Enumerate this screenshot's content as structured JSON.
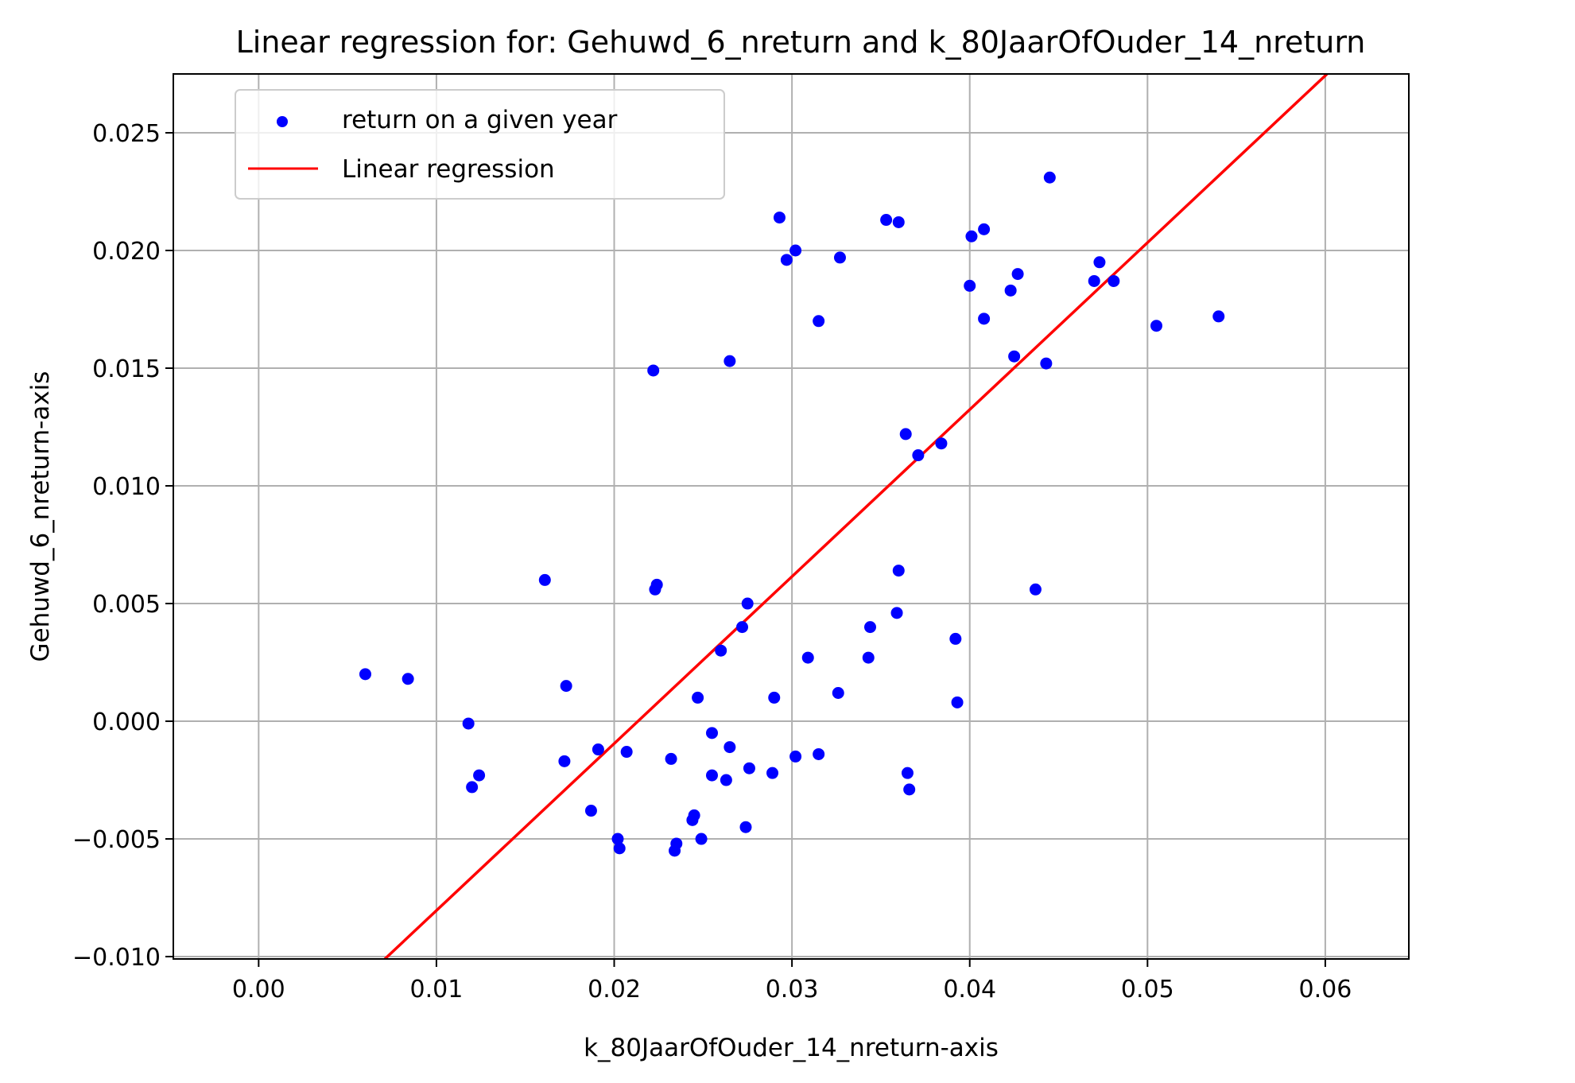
{
  "chart_data": {
    "type": "scatter",
    "title": "Linear regression for: Gehuwd_6_nreturn and k_80JaarOfOuder_14_nreturn",
    "xlabel": "k_80JaarOfOuder_14_nreturn-axis",
    "ylabel": "Gehuwd_6_nreturn-axis",
    "xlim": [
      -0.0048,
      0.0647
    ],
    "ylim": [
      -0.0101,
      0.0275
    ],
    "xticks": [
      0.0,
      0.01,
      0.02,
      0.03,
      0.04,
      0.05,
      0.06
    ],
    "xtick_labels": [
      "0.00",
      "0.01",
      "0.02",
      "0.03",
      "0.04",
      "0.05",
      "0.06"
    ],
    "yticks": [
      -0.01,
      -0.005,
      0.0,
      0.005,
      0.01,
      0.015,
      0.02,
      0.025
    ],
    "ytick_labels": [
      "−0.010",
      "−0.005",
      "0.000",
      "0.005",
      "0.010",
      "0.015",
      "0.020",
      "0.025"
    ],
    "grid": true,
    "legend_position": "top-left",
    "series": [
      {
        "name": "return on a given year",
        "kind": "scatter",
        "color": "#0000ff",
        "points": [
          [
            0.006,
            0.002
          ],
          [
            0.0084,
            0.0018
          ],
          [
            0.0118,
            -0.0001
          ],
          [
            0.012,
            -0.0028
          ],
          [
            0.0124,
            -0.0023
          ],
          [
            0.0161,
            0.006
          ],
          [
            0.0172,
            -0.0017
          ],
          [
            0.0173,
            0.0015
          ],
          [
            0.0187,
            -0.0038
          ],
          [
            0.0191,
            -0.0012
          ],
          [
            0.0202,
            -0.005
          ],
          [
            0.0203,
            -0.0054
          ],
          [
            0.0207,
            -0.0013
          ],
          [
            0.0222,
            0.0149
          ],
          [
            0.0223,
            0.0056
          ],
          [
            0.0224,
            0.0058
          ],
          [
            0.0232,
            -0.0016
          ],
          [
            0.0234,
            -0.0055
          ],
          [
            0.0235,
            -0.0052
          ],
          [
            0.0244,
            -0.0042
          ],
          [
            0.0245,
            -0.004
          ],
          [
            0.0247,
            0.001
          ],
          [
            0.0249,
            -0.005
          ],
          [
            0.0255,
            -0.0005
          ],
          [
            0.0255,
            -0.0023
          ],
          [
            0.026,
            0.003
          ],
          [
            0.0263,
            -0.0025
          ],
          [
            0.0265,
            0.0153
          ],
          [
            0.0265,
            -0.0011
          ],
          [
            0.0272,
            0.004
          ],
          [
            0.0274,
            -0.0045
          ],
          [
            0.0275,
            0.005
          ],
          [
            0.0276,
            -0.002
          ],
          [
            0.0289,
            -0.0022
          ],
          [
            0.029,
            0.001
          ],
          [
            0.0293,
            0.0214
          ],
          [
            0.0297,
            0.0196
          ],
          [
            0.0302,
            0.02
          ],
          [
            0.0302,
            -0.0015
          ],
          [
            0.0309,
            0.0027
          ],
          [
            0.0315,
            0.017
          ],
          [
            0.0315,
            -0.0014
          ],
          [
            0.0326,
            0.0012
          ],
          [
            0.0327,
            0.0197
          ],
          [
            0.0343,
            0.0027
          ],
          [
            0.0344,
            0.004
          ],
          [
            0.0353,
            0.0213
          ],
          [
            0.0359,
            0.0046
          ],
          [
            0.036,
            0.0064
          ],
          [
            0.036,
            0.0212
          ],
          [
            0.0364,
            0.0122
          ],
          [
            0.0365,
            -0.0022
          ],
          [
            0.0366,
            -0.0029
          ],
          [
            0.0371,
            0.0113
          ],
          [
            0.0384,
            0.0118
          ],
          [
            0.0392,
            0.0035
          ],
          [
            0.0393,
            0.0008
          ],
          [
            0.04,
            0.0185
          ],
          [
            0.0401,
            0.0206
          ],
          [
            0.0408,
            0.0171
          ],
          [
            0.0408,
            0.0209
          ],
          [
            0.0423,
            0.0183
          ],
          [
            0.0425,
            0.0155
          ],
          [
            0.0427,
            0.019
          ],
          [
            0.0437,
            0.0056
          ],
          [
            0.0443,
            0.0152
          ],
          [
            0.0445,
            0.0231
          ],
          [
            0.047,
            0.0187
          ],
          [
            0.0473,
            0.0195
          ],
          [
            0.0481,
            0.0187
          ],
          [
            0.0505,
            0.0168
          ],
          [
            0.054,
            0.0172
          ]
        ]
      },
      {
        "name": "Linear regression",
        "kind": "line",
        "color": "#ff0000",
        "points": [
          [
            0.0071,
            -0.0101
          ],
          [
            0.0601,
            0.0275
          ]
        ]
      }
    ]
  }
}
